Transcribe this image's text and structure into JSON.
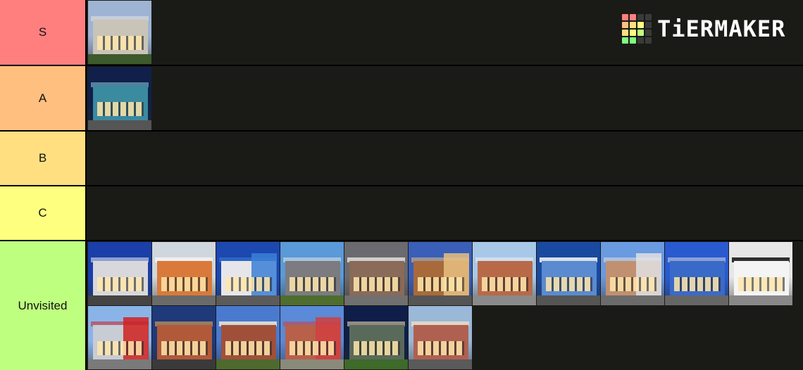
{
  "brand": {
    "logo_text": "TiERMAKER",
    "logo_grid_colors": [
      "#ff7f7f",
      "#ff7f7f",
      "#3a3a3a",
      "#3a3a3a",
      "#ffbf7f",
      "#ffdf7f",
      "#ffff7f",
      "#3a3a3a",
      "#ffdf7f",
      "#ffff7f",
      "#bfff7f",
      "#3a3a3a",
      "#7fff7f",
      "#7fff7f",
      "#3a3a3a",
      "#3a3a3a"
    ]
  },
  "tiers": [
    {
      "label": "S",
      "color": "#ff7f7f",
      "items": [
        {
          "sky": "#9fb4d4",
          "building": "#c9c4b8",
          "ground": "#3c5a2c",
          "accent": "#e8e4da"
        }
      ]
    },
    {
      "label": "A",
      "color": "#ffbf7f",
      "items": [
        {
          "sky": "#10204a",
          "building": "#3a8aa0",
          "ground": "#555555",
          "accent": "#8fd0e0"
        }
      ]
    },
    {
      "label": "B",
      "color": "#ffdf7f",
      "items": []
    },
    {
      "label": "C",
      "color": "#ffff7f",
      "items": []
    },
    {
      "label": "Unvisited",
      "color": "#bfff7f",
      "items": [
        {
          "sky": "#1a3fa8",
          "building": "#d8d8dc",
          "ground": "#444444",
          "accent": "#f0f0f0"
        },
        {
          "sky": "#cfd6de",
          "building": "#d97a3a",
          "ground": "#6a6a6a",
          "accent": "#f2f2f2"
        },
        {
          "sky": "#1c48b0",
          "building": "#e6e6ea",
          "ground": "#5b5b5b",
          "accent": "#3b7fd6"
        },
        {
          "sky": "#5a9ad8",
          "building": "#7b7b80",
          "ground": "#4f6d2e",
          "accent": "#e6e6e6"
        },
        {
          "sky": "#6a6a70",
          "building": "#8a6a58",
          "ground": "#707070",
          "accent": "#d9d9d9"
        },
        {
          "sky": "#3a5fb8",
          "building": "#a86a3a",
          "ground": "#555555",
          "accent": "#e8c080"
        },
        {
          "sky": "#a8c8e8",
          "building": "#b86a48",
          "ground": "#8a8a8a",
          "accent": "#f0f0f0"
        },
        {
          "sky": "#1a4aa0",
          "building": "#5a8ad0",
          "ground": "#555555",
          "accent": "#f0f0f0"
        },
        {
          "sky": "#6a9ae0",
          "building": "#c09070",
          "ground": "#6b6b6b",
          "accent": "#e0e0e0"
        },
        {
          "sky": "#2a5ad0",
          "building": "#3a6ac8",
          "ground": "#666666",
          "accent": "#dadada"
        },
        {
          "sky": "#e6e6e6",
          "building": "#f4f4f4",
          "ground": "#888888",
          "accent": "#1a1a1a"
        },
        {
          "sky": "#8ab4e8",
          "building": "#c8ccd4",
          "ground": "#7a7a7a",
          "accent": "#d02020"
        },
        {
          "sky": "#1e3a7a",
          "building": "#b05a3a",
          "ground": "#3a3a3a",
          "accent": "#ffb050"
        },
        {
          "sky": "#4a7ad0",
          "building": "#a0503a",
          "ground": "#4e6a2e",
          "accent": "#e8e0d0"
        },
        {
          "sky": "#5a8ad8",
          "building": "#b8604a",
          "ground": "#8a8a7a",
          "accent": "#d04040"
        },
        {
          "sky": "#0e1e48",
          "building": "#5a6a5a",
          "ground": "#3e6a2a",
          "accent": "#ffe8b0"
        },
        {
          "sky": "#9ab8d8",
          "building": "#b06050",
          "ground": "#5a5a5a",
          "accent": "#e8d8c8"
        }
      ]
    }
  ]
}
